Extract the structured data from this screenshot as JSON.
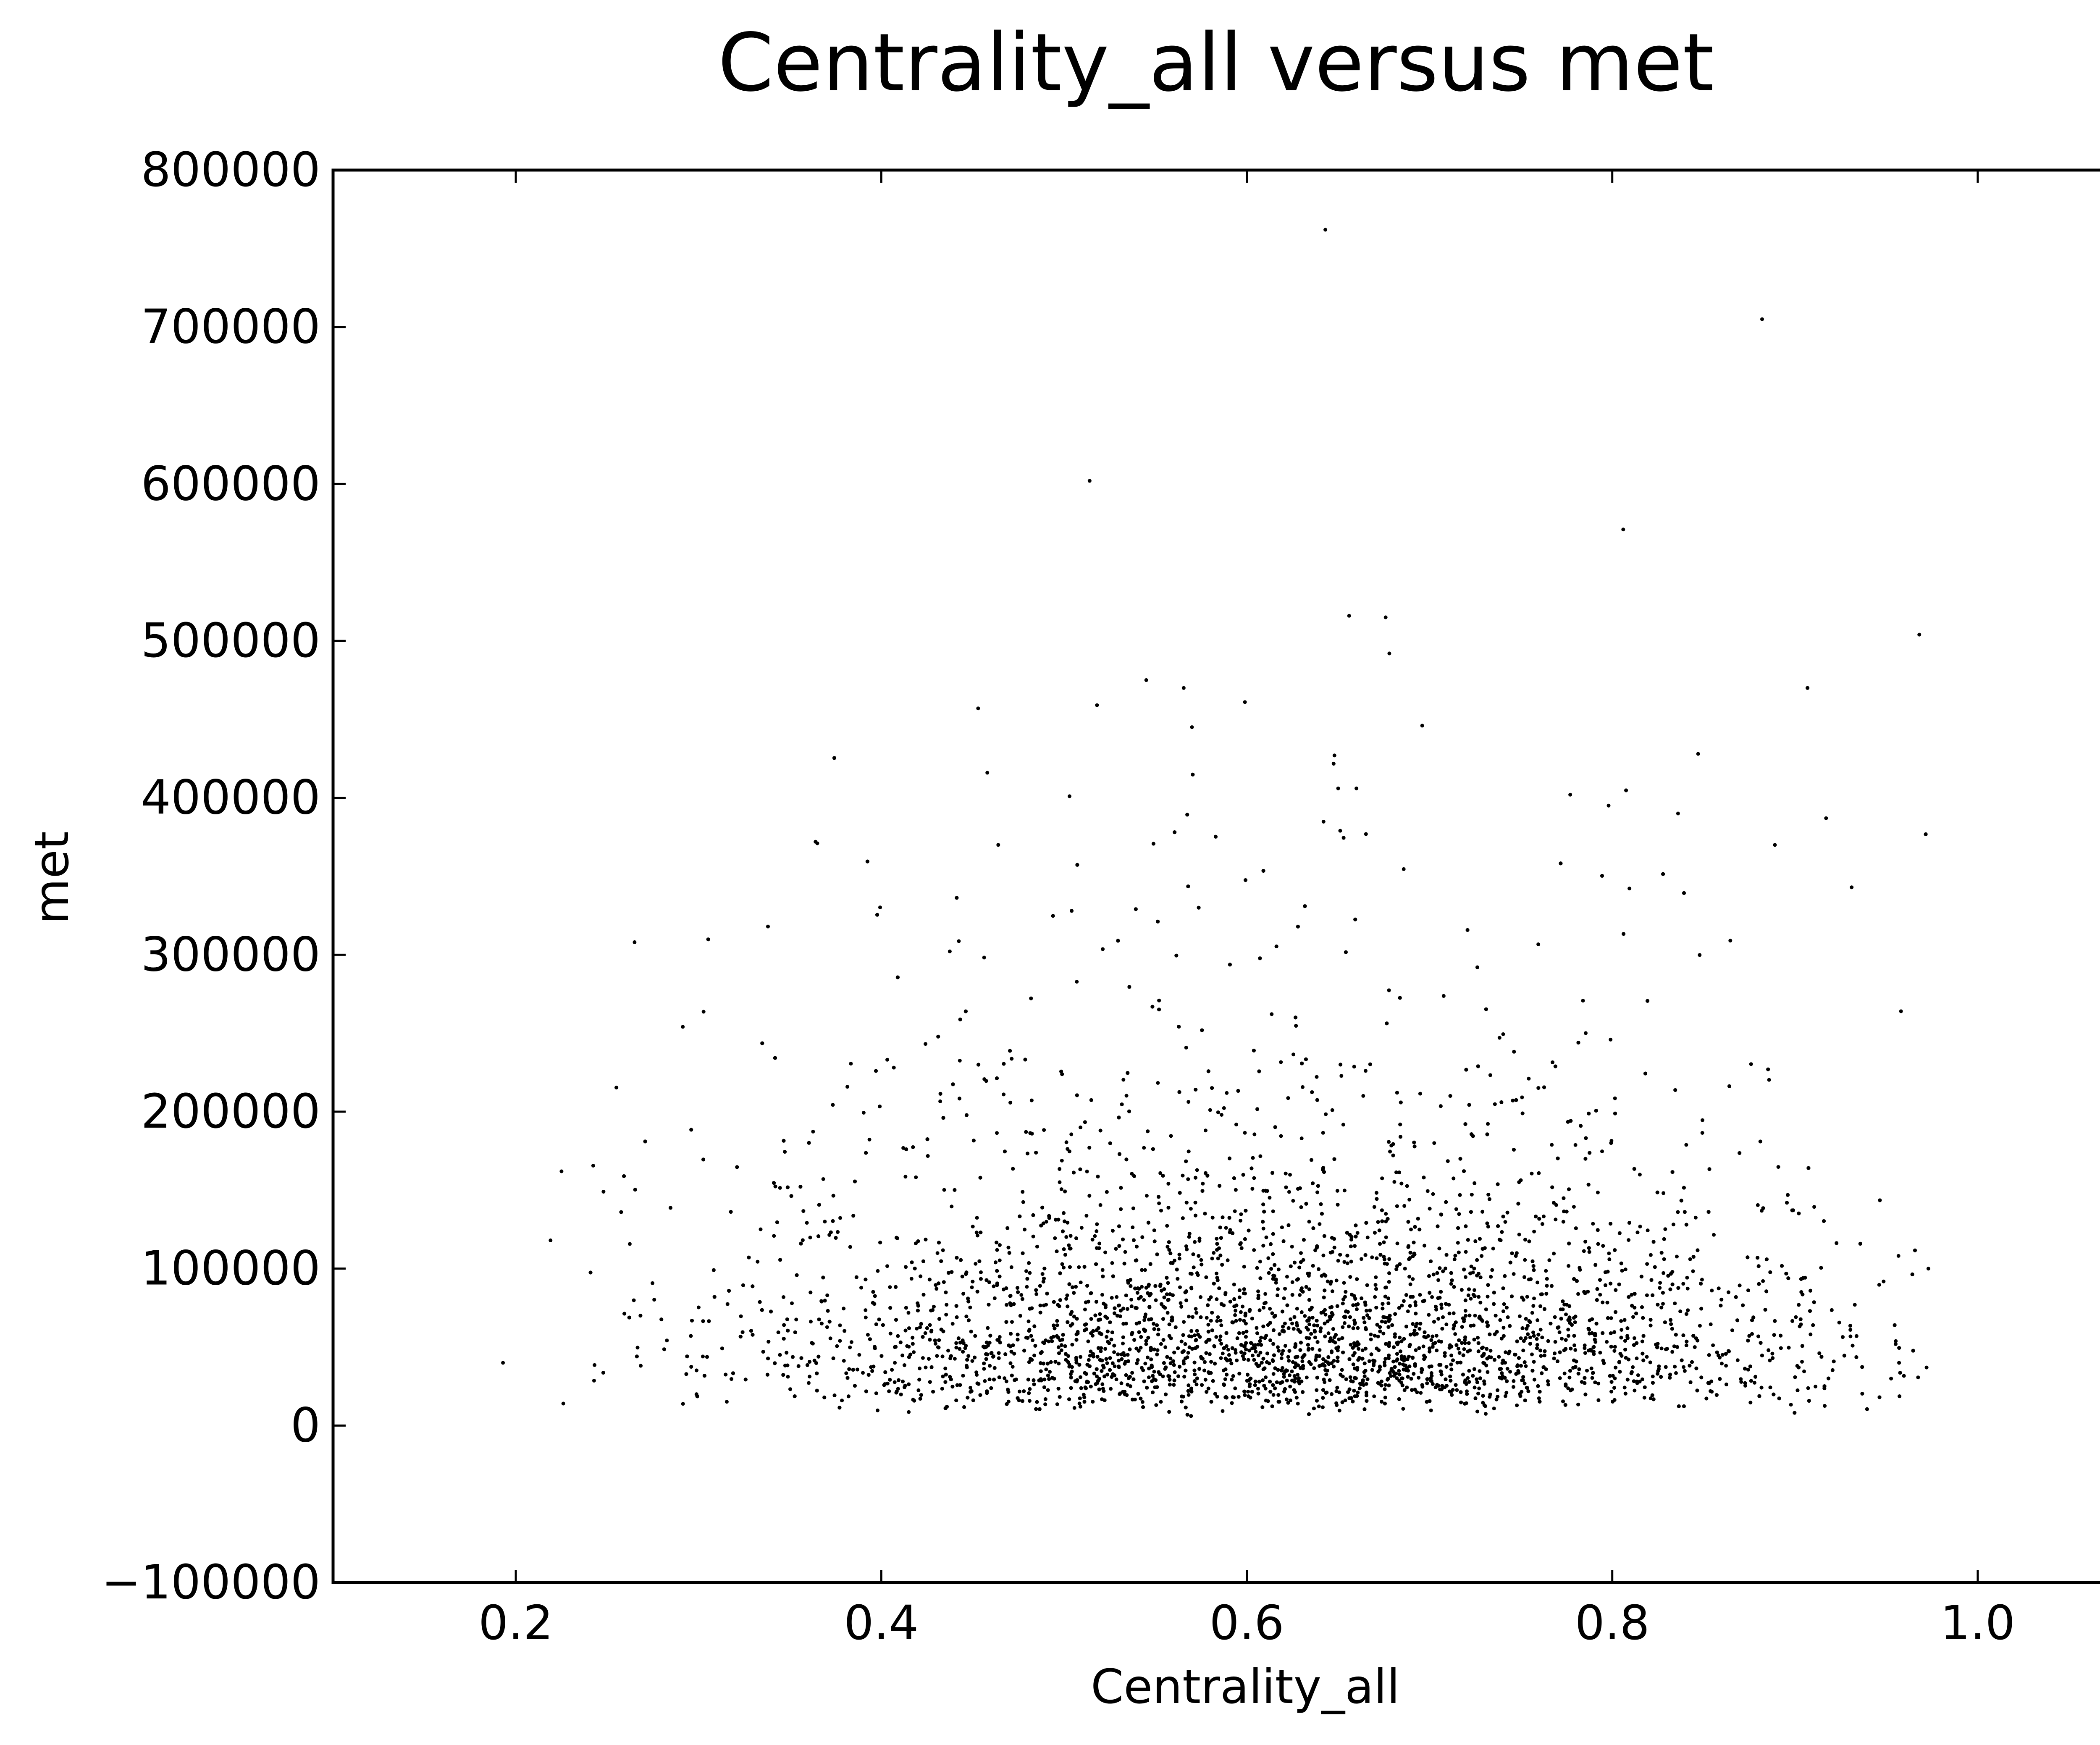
{
  "chart_data": {
    "type": "scatter",
    "title": "Centrality_all versus met",
    "xlabel": "Centrality_all",
    "ylabel": "met",
    "xlim": [
      0.1,
      1.1
    ],
    "ylim": [
      -100000,
      800000
    ],
    "xticks": [
      0.2,
      0.4,
      0.6,
      0.8,
      1.0
    ],
    "xtick_labels": [
      "0.2",
      "0.4",
      "0.6",
      "0.8",
      "1.0"
    ],
    "yticks": [
      -100000,
      0,
      100000,
      200000,
      300000,
      400000,
      500000,
      600000,
      700000,
      800000
    ],
    "ytick_labels": [
      "−100000",
      "0",
      "100000",
      "200000",
      "300000",
      "400000",
      "500000",
      "600000",
      "700000",
      "800000"
    ],
    "grid": false,
    "legend": "none",
    "marker_color": "#000000",
    "point_count_approx": 6000,
    "notable_points": [
      {
        "x": 0.643,
        "y": 762000
      },
      {
        "x": 0.882,
        "y": 705000
      },
      {
        "x": 0.514,
        "y": 602000
      },
      {
        "x": 0.806,
        "y": 571000
      },
      {
        "x": 0.968,
        "y": 504000
      },
      {
        "x": 0.656,
        "y": 516000
      },
      {
        "x": 0.676,
        "y": 515000
      },
      {
        "x": 0.678,
        "y": 492000
      },
      {
        "x": 0.545,
        "y": 475000
      },
      {
        "x": 0.599,
        "y": 461000
      },
      {
        "x": 0.453,
        "y": 457000
      },
      {
        "x": 0.57,
        "y": 445000
      },
      {
        "x": 0.696,
        "y": 446000
      },
      {
        "x": 0.847,
        "y": 428000
      },
      {
        "x": 0.648,
        "y": 427000
      },
      {
        "x": 0.458,
        "y": 416000
      },
      {
        "x": 0.65,
        "y": 406000
      },
      {
        "x": 0.66,
        "y": 406000
      },
      {
        "x": 0.503,
        "y": 401000
      },
      {
        "x": 0.777,
        "y": 402000
      },
      {
        "x": 0.798,
        "y": 395000
      },
      {
        "x": 0.836,
        "y": 390000
      },
      {
        "x": 0.917,
        "y": 387000
      },
      {
        "x": 0.365,
        "y": 371000
      },
      {
        "x": 0.464,
        "y": 370000
      },
      {
        "x": 0.889,
        "y": 370000
      },
      {
        "x": 0.364,
        "y": 372000
      },
      {
        "x": 0.338,
        "y": 318000
      },
      {
        "x": 0.265,
        "y": 308000
      },
      {
        "x": 0.931,
        "y": 343000
      },
      {
        "x": 0.958,
        "y": 264000
      },
      {
        "x": 0.193,
        "y": 40000
      },
      {
        "x": 0.226,
        "y": 14000
      },
      {
        "x": 0.219,
        "y": 118000
      },
      {
        "x": 0.225,
        "y": 162000
      },
      {
        "x": 0.248,
        "y": 149000
      },
      {
        "x": 0.973,
        "y": 100000
      },
      {
        "x": 0.972,
        "y": 37000
      }
    ]
  }
}
